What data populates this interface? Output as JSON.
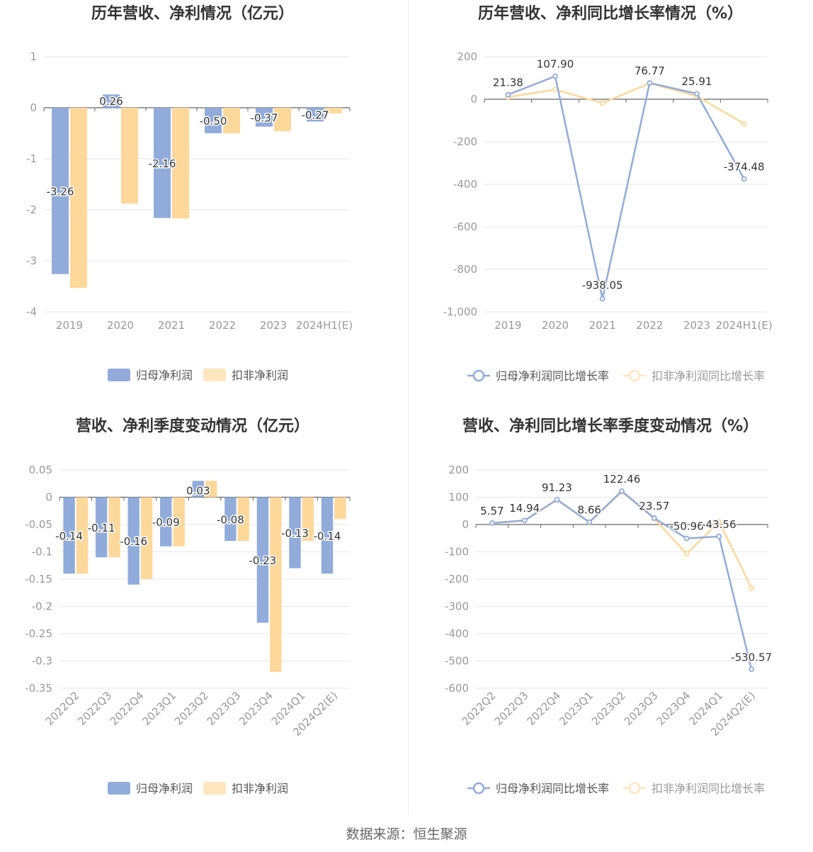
{
  "source_label": "数据来源：恒生聚源",
  "colors": {
    "blue": "#91acda",
    "orange": "#fdd89b",
    "grid": "#e6e6e6",
    "axis": "#666666",
    "tick": "#999999",
    "title": "#333333"
  },
  "chart_data": [
    {
      "type": "bar",
      "title": "历年营收、净利情况（亿元）",
      "categories": [
        "2019",
        "2020",
        "2021",
        "2022",
        "2023",
        "2024H1(E)"
      ],
      "ylim": [
        -4,
        1
      ],
      "yticks": [
        "1",
        "0",
        "-1",
        "-2",
        "-3",
        "-4"
      ],
      "ytick_values": [
        1,
        0,
        -1,
        -2,
        -3,
        -4
      ],
      "xtick_rotate": false,
      "grid": true,
      "legend_position": "bottom",
      "series": [
        {
          "name": "归母净利润",
          "values": [
            -3.26,
            0.26,
            -2.16,
            -0.5,
            -0.37,
            -0.27
          ],
          "labels": [
            "-3.26",
            "0.26",
            "-2.16",
            "-0.50",
            "-0.37",
            "-0.27"
          ]
        },
        {
          "name": "扣非净利润",
          "values": [
            -3.53,
            -1.88,
            -2.17,
            -0.5,
            -0.46,
            -0.11
          ]
        }
      ]
    },
    {
      "type": "line",
      "title": "历年营收、净利同比增长率情况（%）",
      "categories": [
        "2019",
        "2020",
        "2021",
        "2022",
        "2023",
        "2024H1(E)"
      ],
      "ylim": [
        -1000,
        200
      ],
      "yticks": [
        "200",
        "0",
        "-200",
        "-400",
        "-600",
        "-800",
        "-1,000"
      ],
      "ytick_values": [
        200,
        0,
        -200,
        -400,
        -600,
        -800,
        -1000
      ],
      "xtick_rotate": false,
      "grid": true,
      "legend_position": "bottom",
      "series": [
        {
          "name": "归母净利润同比增长率",
          "values": [
            21.38,
            107.9,
            -938.05,
            76.77,
            25.91,
            -374.48
          ],
          "labels": [
            "21.38",
            "107.90",
            "-938.05",
            "76.77",
            "25.91",
            "-374.48"
          ]
        },
        {
          "name": "扣非净利润同比增长率",
          "values": [
            10,
            45,
            -18,
            75,
            15,
            -115
          ]
        }
      ]
    },
    {
      "type": "bar",
      "title": "营收、净利季度变动情况（亿元）",
      "categories": [
        "2022Q2",
        "2022Q3",
        "2022Q4",
        "2023Q1",
        "2023Q2",
        "2023Q3",
        "2023Q4",
        "2024Q1",
        "2024Q2(E)"
      ],
      "ylim": [
        -0.35,
        0.05
      ],
      "yticks": [
        "0.05",
        "0",
        "-0.05",
        "-0.1",
        "-0.15",
        "-0.2",
        "-0.25",
        "-0.3",
        "-0.35"
      ],
      "ytick_values": [
        0.05,
        0,
        -0.05,
        -0.1,
        -0.15,
        -0.2,
        -0.25,
        -0.3,
        -0.35
      ],
      "xtick_rotate": true,
      "grid": true,
      "legend_position": "bottom",
      "series": [
        {
          "name": "归母净利润",
          "values": [
            -0.14,
            -0.11,
            -0.16,
            -0.09,
            0.03,
            -0.08,
            -0.23,
            -0.13,
            -0.14
          ],
          "labels": [
            "-0.14",
            "-0.11",
            "-0.16",
            "-0.09",
            "0.03",
            "-0.08",
            "-0.23",
            "-0.13",
            "-0.14"
          ]
        },
        {
          "name": "扣非净利润",
          "values": [
            -0.14,
            -0.11,
            -0.15,
            -0.09,
            0.03,
            -0.08,
            -0.32,
            -0.08,
            -0.04
          ]
        }
      ]
    },
    {
      "type": "line",
      "title": "营收、净利同比增长率季度变动情况（%）",
      "categories": [
        "2022Q2",
        "2022Q3",
        "2022Q4",
        "2023Q1",
        "2023Q2",
        "2023Q3",
        "2023Q4",
        "2024Q1",
        "2024Q2(E)"
      ],
      "ylim": [
        -600,
        200
      ],
      "yticks": [
        "200",
        "100",
        "0",
        "-100",
        "-200",
        "-300",
        "-400",
        "-500",
        "-600"
      ],
      "ytick_values": [
        200,
        100,
        0,
        -100,
        -200,
        -300,
        -400,
        -500,
        -600
      ],
      "xtick_rotate": true,
      "grid": true,
      "legend_position": "bottom",
      "series": [
        {
          "name": "归母净利润同比增长率",
          "values": [
            5.57,
            14.94,
            91.23,
            8.66,
            122.46,
            23.57,
            -50.96,
            -43.56,
            -530.57
          ],
          "labels": [
            "5.57",
            "14.94",
            "91.23",
            "8.66",
            "122.46",
            "23.57",
            "-50.96",
            "-43.56",
            "-530.57"
          ]
        },
        {
          "name": "扣非净利润同比增长率",
          "values": [
            5,
            14,
            90,
            8,
            120,
            22,
            -107,
            10,
            -232
          ]
        }
      ]
    }
  ]
}
